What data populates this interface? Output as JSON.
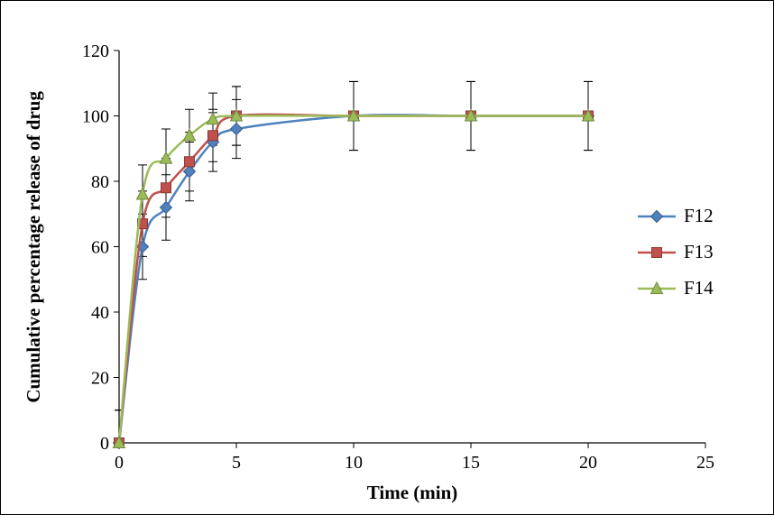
{
  "chart_data": {
    "type": "line",
    "title": "",
    "xlabel": "Time (min)",
    "ylabel": "Cumulative percentage release of drug",
    "xlim": [
      0,
      25
    ],
    "ylim": [
      0,
      120
    ],
    "xticks": [
      0,
      5,
      10,
      15,
      20,
      25
    ],
    "yticks": [
      0,
      20,
      40,
      60,
      80,
      100,
      120
    ],
    "grid": false,
    "legend_position": "right",
    "error_color": "#000000",
    "axis_color": "#000000",
    "x": [
      0,
      1,
      2,
      3,
      4,
      5,
      10,
      15,
      20
    ],
    "series": [
      {
        "name": "F12",
        "marker": "diamond",
        "color": "#4F81BD",
        "edge": "#385D8A",
        "values": [
          0,
          60,
          72,
          83,
          92,
          96,
          100,
          100,
          100
        ],
        "error": [
          10,
          10,
          10,
          9,
          9,
          9,
          10.5,
          10.5,
          10.5
        ]
      },
      {
        "name": "F13",
        "marker": "square",
        "color": "#C0504D",
        "edge": "#8B3A36",
        "values": [
          0,
          67,
          78,
          86,
          94,
          100,
          100,
          100,
          100
        ],
        "error": [
          10,
          10,
          9,
          9,
          8,
          9,
          10.5,
          10.5,
          10.5
        ]
      },
      {
        "name": "F14",
        "marker": "triangle",
        "color": "#9BBB59",
        "edge": "#71893F",
        "values": [
          0,
          76,
          87,
          94,
          99,
          100,
          100,
          100,
          100
        ],
        "error": [
          10,
          9,
          9,
          8,
          8,
          9,
          10.5,
          10.5,
          10.5
        ]
      }
    ]
  }
}
